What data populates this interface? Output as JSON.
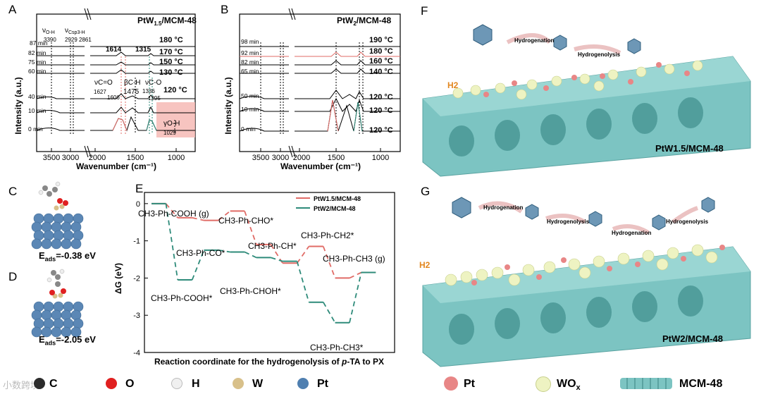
{
  "panels": {
    "A": {
      "letter": "A",
      "sample": "PtW1.5/MCM-48",
      "sample_main": "PtW",
      "sample_sub": "1.5",
      "sample_tail": "/MCM-48",
      "xlabel": "Wavenumber (cm⁻¹)",
      "ylabel": "Intensity (a.u.)",
      "xticks": [
        "3500",
        "3000",
        "2000",
        "1500",
        "1000"
      ],
      "times": [
        "87 min",
        "82 min",
        "75 min",
        "60 min",
        "40 min",
        "10 min",
        "0 min"
      ],
      "temps": [
        "180 °C",
        "170 °C",
        "150 °C",
        "130 °C",
        "120 °C"
      ],
      "bands_top": [
        "ν",
        "O-H",
        "3390",
        "ν",
        "Csp3-H",
        "2929 2861"
      ],
      "annotations": {
        "vCO_label": "νC=O",
        "v1627": "1627",
        "v1606": "1606",
        "v1614": "1614",
        "v1315": "1315",
        "bCH": "βC-H",
        "v1475": "1475",
        "vCO2": "νC-O",
        "v1336": "1336",
        "v1295": "1295",
        "gOH": "γO-H",
        "v1029": "1029"
      }
    },
    "B": {
      "letter": "B",
      "sample_main": "PtW",
      "sample_sub": "2",
      "sample_tail": "/MCM-48",
      "xlabel": "Wavenumber (cm⁻¹)",
      "ylabel": "Intensity (a.u.)",
      "xticks": [
        "3500",
        "3000",
        "2000",
        "1500",
        "1000"
      ],
      "times": [
        "98 min",
        "92 min",
        "82 min",
        "65 min",
        "50 min",
        "10 min",
        "0 min"
      ],
      "temps": [
        "190 °C",
        "180 °C",
        "160 °C",
        "140 °C",
        "120 °C",
        "120 °C",
        "120 °C"
      ]
    },
    "C": {
      "letter": "C",
      "eads_label": "E",
      "eads_sub": "ads",
      "eads_value": "=-0.38 eV"
    },
    "D": {
      "letter": "D",
      "eads_label": "E",
      "eads_sub": "ads",
      "eads_value": "=-2.05 eV"
    },
    "E": {
      "letter": "E",
      "xlabel_prefix": "Reaction coordinate for the hydrogenolysis of ",
      "xlabel_italic": "p",
      "xlabel_suffix": "-TA to PX",
      "ylabel": "ΔG (eV)",
      "yticks": [
        "0",
        "-1",
        "-2",
        "-3",
        "-4"
      ],
      "species": {
        "s1": "CH3-Ph-COOH (g)",
        "s2": "CH3-Ph-CHO*",
        "s3": "CH3-Ph-CO*",
        "s4": "CH3-Ph-CH*",
        "s5": "CH3-Ph-CH2*",
        "s6": "CH3-Ph-CH3 (g)",
        "s7": "CH3-Ph-COOH*",
        "s8": "CH3-Ph-CHOH*",
        "s9": "CH3-Ph-CH3*"
      },
      "legend": [
        "PtW1.5/MCM-48",
        "PtW2/MCM-48"
      ]
    },
    "F": {
      "letter": "F",
      "sample": "PtW1.5/MCM-48",
      "step1": "Hydrogenation",
      "step2": "Hydrogenolysis",
      "h2": "H2"
    },
    "G": {
      "letter": "G",
      "sample": "PtW2/MCM-48",
      "step1": "Hydrogenation",
      "step2": "Hydrogenolysis",
      "step3": "Hydrogenation",
      "step4": "Hydrogenolysis",
      "h2": "H2"
    }
  },
  "chart_data": [
    {
      "type": "line",
      "title": "E",
      "ylabel": "ΔG (eV)",
      "xlabel": "Reaction coordinate for the hydrogenolysis of p-TA to PX",
      "ylim": [
        -4,
        0.3
      ],
      "categories": [
        "CH3-Ph-COOH (g)",
        "CH3-Ph-COOH*",
        "CH3-Ph-CO*",
        "CH3-Ph-CHO*",
        "CH3-Ph-CHOH*",
        "CH3-Ph-CH*",
        "CH3-Ph-CH2*",
        "CH3-Ph-CH3*",
        "CH3-Ph-CH3 (g)"
      ],
      "series": [
        {
          "name": "PtW1.5/MCM-48",
          "color": "#e06b66",
          "values": [
            0.0,
            -0.38,
            -0.45,
            -0.2,
            -1.1,
            -1.6,
            -1.15,
            -2.0,
            -1.85
          ]
        },
        {
          "name": "PtW2/MCM-48",
          "color": "#2e8b7a",
          "values": [
            0.0,
            -2.05,
            -1.25,
            -1.3,
            -1.45,
            -1.55,
            -2.65,
            -3.2,
            -1.85
          ]
        }
      ]
    }
  ],
  "legend_bottom": {
    "left": [
      {
        "symbol": "C",
        "label": "C",
        "color": "#2b2b2b"
      },
      {
        "symbol": "O",
        "label": "O",
        "color": "#e02020"
      },
      {
        "symbol": "H",
        "label": "H",
        "color": "#f0f0f0"
      },
      {
        "symbol": "W",
        "label": "W",
        "color": "#d8c08a"
      },
      {
        "symbol": "Pt",
        "label": "Pt",
        "color": "#4f7fb0"
      }
    ],
    "right": [
      {
        "label": "Pt",
        "color": "#e88686"
      },
      {
        "label": "WOx",
        "label_main": "WO",
        "label_sub": "x",
        "color": "#eef3c2"
      },
      {
        "label": "MCM-48",
        "color": "#7cc4c2"
      }
    ]
  },
  "watermark": "小数跨境"
}
